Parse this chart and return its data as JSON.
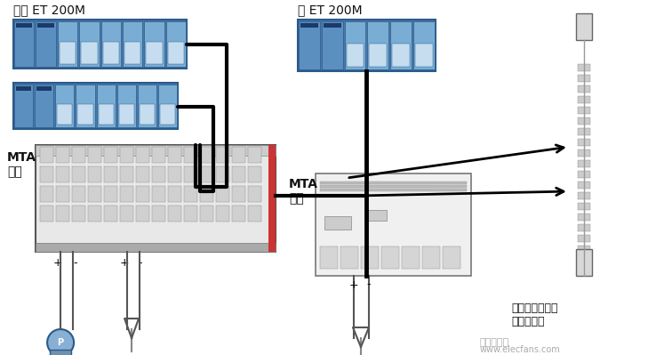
{
  "bg_color": "#ffffff",
  "title": "",
  "label_redundant": "冒余 ET 200M",
  "label_single": "单 ET 200M",
  "label_mta_left": "MTA\n模板",
  "label_mta_right": "MTA\n模板",
  "label_cable": "配有前连接器的\n预装配电缆",
  "watermark": "电子发烧友",
  "watermark_url": "www.elecfans.com",
  "et200m_blue_dark": "#4a7aab",
  "et200m_blue_light": "#7aadd4",
  "et200m_blue_mid": "#5b8fc0",
  "module_border": "#2a5a8a",
  "line_color": "#000000",
  "arrow_color": "#000000"
}
